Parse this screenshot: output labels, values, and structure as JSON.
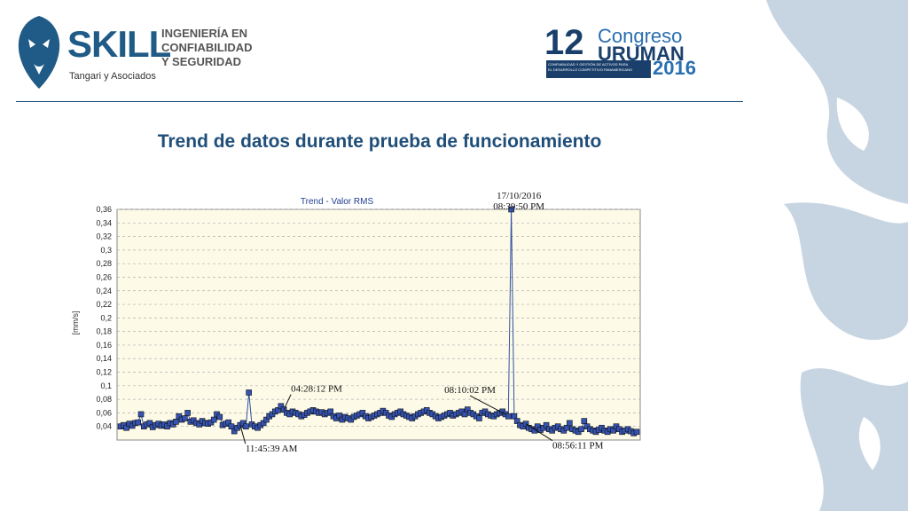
{
  "header": {
    "brand": "SKILL",
    "brand_subtitle": "Tangari y Asociados",
    "tagline_1": "INGENIERÍA EN",
    "tagline_2": "CONFIABILIDAD",
    "tagline_3": "Y SEGURIDAD",
    "event_number": "12",
    "event_line1": "Congreso",
    "event_line2": "URUMAN",
    "event_year": "2016",
    "event_subtitle_1": "CONFIABILIDAD Y GESTIÓN DE ACTIVOS PARA",
    "event_subtitle_2": "EL DESARROLLO COMPETITIVO PANAMERICANO"
  },
  "slide": {
    "title": "Trend de datos durante prueba de funcionamiento"
  },
  "colors": {
    "title": "#1f4e79",
    "brand": "#1f5b86",
    "event": "#2a6fb0",
    "series": "#2f4f9f",
    "plot_bg": "#fdfbe8",
    "grid": "#b0b0b0"
  },
  "chart_data": {
    "type": "line",
    "title": "Trend - Valor RMS",
    "ylabel": "[mm/s]",
    "xlabel": "",
    "ylim": [
      0.02,
      0.36
    ],
    "yticks": [
      "0,36",
      "0,34",
      "0,32",
      "0,3",
      "0,28",
      "0,26",
      "0,24",
      "0,22",
      "0,2",
      "0,18",
      "0,16",
      "0,14",
      "0,12",
      "0,1",
      "0,08",
      "0,06",
      "0,04"
    ],
    "grid": true,
    "series": [
      {
        "values": [
          0.04,
          0.042,
          0.038,
          0.044,
          0.041,
          0.045,
          0.046,
          0.058,
          0.04,
          0.043,
          0.045,
          0.039,
          0.042,
          0.044,
          0.041,
          0.043,
          0.04,
          0.045,
          0.043,
          0.047,
          0.055,
          0.05,
          0.052,
          0.06,
          0.047,
          0.049,
          0.045,
          0.043,
          0.048,
          0.045,
          0.044,
          0.046,
          0.05,
          0.058,
          0.054,
          0.042,
          0.044,
          0.046,
          0.04,
          0.033,
          0.038,
          0.042,
          0.045,
          0.04,
          0.09,
          0.043,
          0.04,
          0.038,
          0.042,
          0.045,
          0.05,
          0.055,
          0.058,
          0.062,
          0.064,
          0.07,
          0.065,
          0.06,
          0.058,
          0.062,
          0.06,
          0.058,
          0.055,
          0.057,
          0.06,
          0.062,
          0.064,
          0.062,
          0.06,
          0.061,
          0.058,
          0.06,
          0.062,
          0.055,
          0.052,
          0.056,
          0.05,
          0.054,
          0.052,
          0.05,
          0.054,
          0.056,
          0.058,
          0.06,
          0.055,
          0.052,
          0.054,
          0.056,
          0.058,
          0.06,
          0.063,
          0.06,
          0.056,
          0.054,
          0.058,
          0.06,
          0.062,
          0.058,
          0.056,
          0.054,
          0.052,
          0.055,
          0.058,
          0.06,
          0.062,
          0.064,
          0.06,
          0.058,
          0.055,
          0.052,
          0.054,
          0.056,
          0.058,
          0.06,
          0.056,
          0.058,
          0.06,
          0.062,
          0.058,
          0.065,
          0.06,
          0.058,
          0.055,
          0.052,
          0.06,
          0.062,
          0.058,
          0.056,
          0.055,
          0.058,
          0.06,
          0.062,
          0.058,
          0.055,
          0.36,
          0.055,
          0.048,
          0.042,
          0.04,
          0.044,
          0.038,
          0.036,
          0.034,
          0.04,
          0.035,
          0.038,
          0.042,
          0.036,
          0.034,
          0.038,
          0.04,
          0.036,
          0.034,
          0.038,
          0.045,
          0.036,
          0.034,
          0.032,
          0.036,
          0.048,
          0.04,
          0.036,
          0.034,
          0.032,
          0.035,
          0.038,
          0.034,
          0.032,
          0.036,
          0.034,
          0.04,
          0.036,
          0.032,
          0.034,
          0.036,
          0.033,
          0.03,
          0.032
        ]
      }
    ],
    "annotations": [
      {
        "text": "17/10/2016",
        "index": 136
      },
      {
        "text": "08:39:50 PM",
        "index": 136
      },
      {
        "text": "04:28:12 PM",
        "index": 56
      },
      {
        "text": "08:10:02 PM",
        "index": 132
      },
      {
        "text": "11:45:39 AM",
        "index": 41
      },
      {
        "text": "08:56:11 PM",
        "index": 139
      }
    ]
  }
}
